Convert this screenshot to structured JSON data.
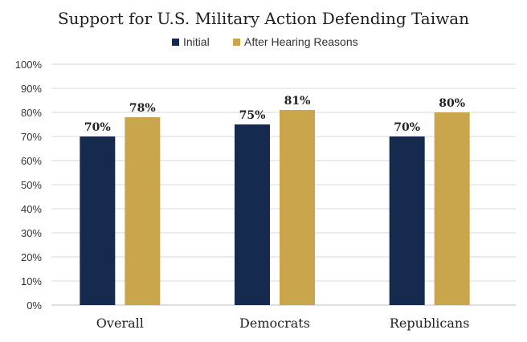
{
  "chart_data": {
    "type": "bar",
    "title": "Support for U.S. Military Action Defending Taiwan",
    "xlabel": "",
    "ylabel": "",
    "categories": [
      "Overall",
      "Democrats",
      "Republicans"
    ],
    "series": [
      {
        "name": "Initial",
        "values": [
          70,
          75,
          70
        ],
        "color": "#162a4f"
      },
      {
        "name": "After Hearing Reasons",
        "values": [
          78,
          81,
          80
        ],
        "color": "#c9a54b"
      }
    ],
    "ylim": [
      0,
      100
    ],
    "ytick_step": 10,
    "value_suffix": "%",
    "grid": true,
    "legend_position": "top-center"
  }
}
